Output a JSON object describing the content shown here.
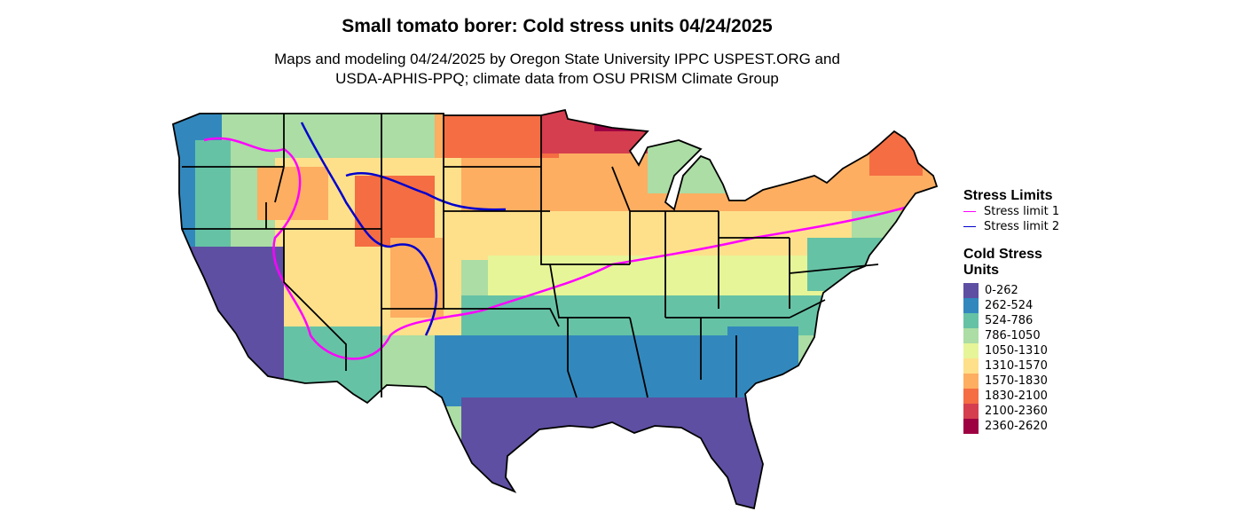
{
  "title": "Small tomato borer: Cold stress units 04/24/2025",
  "subtitle_lines": [
    "Maps and modeling 04/24/2025 by Oregon State University IPPC USPEST.ORG and",
    "USDA-APHIS-PPQ; climate data from OSU PRISM Climate Group"
  ],
  "legend": {
    "stress_title": "Stress Limits",
    "stress_items": [
      {
        "label": "Stress limit 1",
        "color": "#ff00ff"
      },
      {
        "label": "Stress limit 2",
        "color": "#0000cd"
      }
    ],
    "cold_title_lines": [
      "Cold Stress",
      "Units"
    ],
    "bins": [
      {
        "label": "0-262",
        "color": "#5e4fa2"
      },
      {
        "label": "262-524",
        "color": "#3288bd"
      },
      {
        "label": "524-786",
        "color": "#66c2a5"
      },
      {
        "label": "786-1050",
        "color": "#abdda4"
      },
      {
        "label": "1050-1310",
        "color": "#e6f598"
      },
      {
        "label": "1310-1570",
        "color": "#fee08b"
      },
      {
        "label": "1570-1830",
        "color": "#fdae61"
      },
      {
        "label": "1830-2100",
        "color": "#f46d43"
      },
      {
        "label": "2100-2360",
        "color": "#d53e4f"
      },
      {
        "label": "2360-2620",
        "color": "#9e0142"
      }
    ]
  }
}
